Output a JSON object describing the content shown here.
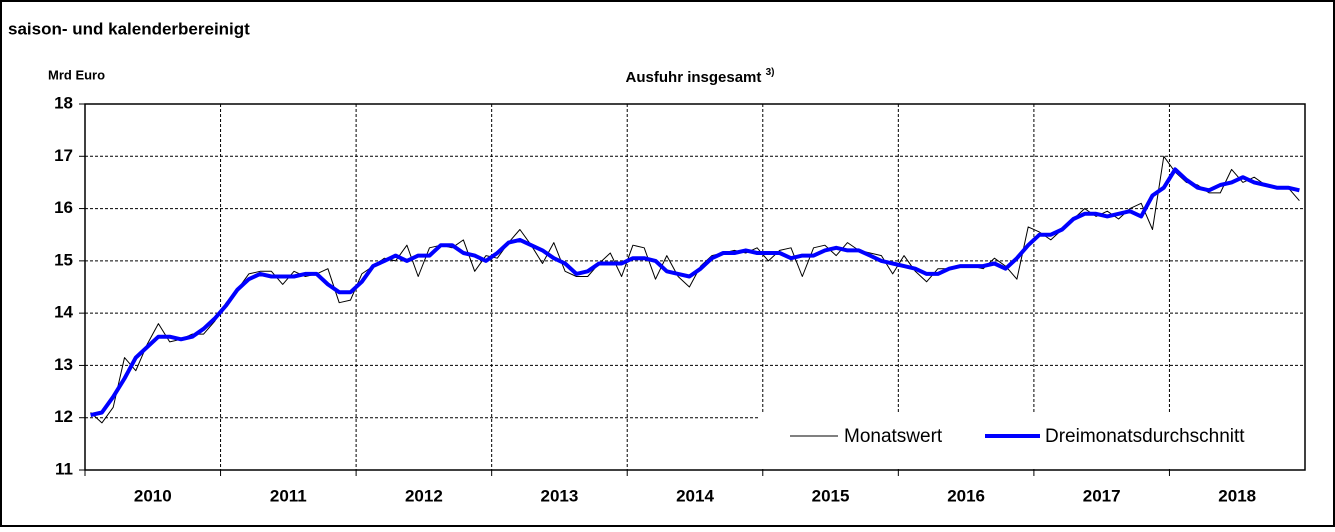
{
  "chart_data": {
    "type": "line",
    "subtitle": "saison- und kalenderbereinigt",
    "y_label": "Mrd Euro",
    "title": "Ausfuhr insgesamt",
    "title_note": "3)",
    "years": [
      "2010",
      "2011",
      "2012",
      "2013",
      "2014",
      "2015",
      "2016",
      "2017",
      "2018"
    ],
    "ylim": [
      11,
      18
    ],
    "yticks": [
      11,
      12,
      13,
      14,
      15,
      16,
      17,
      18
    ],
    "grid": true,
    "legend": "lower right",
    "series": [
      {
        "name": "Monatswert",
        "color": "#000000",
        "width": 1,
        "values": [
          12.1,
          11.9,
          12.2,
          13.15,
          12.9,
          13.4,
          13.8,
          13.45,
          13.5,
          13.6,
          13.6,
          13.85,
          14.2,
          14.45,
          14.75,
          14.8,
          14.8,
          14.55,
          14.8,
          14.7,
          14.75,
          14.85,
          14.2,
          14.25,
          14.75,
          14.9,
          15.05,
          15.0,
          15.3,
          14.7,
          15.25,
          15.3,
          15.25,
          15.4,
          14.8,
          15.1,
          15.05,
          15.35,
          15.6,
          15.3,
          14.95,
          15.35,
          14.8,
          14.7,
          14.7,
          14.95,
          15.15,
          14.7,
          15.3,
          15.25,
          14.65,
          15.1,
          14.7,
          14.5,
          14.9,
          15.1,
          15.15,
          15.2,
          15.15,
          15.25,
          15.0,
          15.2,
          15.25,
          14.7,
          15.25,
          15.3,
          15.1,
          15.35,
          15.2,
          15.15,
          15.1,
          14.75,
          15.1,
          14.8,
          14.6,
          14.85,
          14.85,
          14.9,
          14.9,
          14.85,
          15.05,
          14.9,
          14.65,
          15.65,
          15.55,
          15.4,
          15.6,
          15.8,
          16.0,
          15.85,
          15.95,
          15.8,
          16.0,
          16.1,
          15.6,
          17.0,
          16.7,
          16.5,
          16.45,
          16.3,
          16.3,
          16.75,
          16.5,
          16.6,
          16.45,
          16.4,
          16.4,
          16.15
        ]
      },
      {
        "name": "Dreimonatsdurchschnitt",
        "color": "#0000ff",
        "width": 4,
        "values": [
          12.05,
          12.1,
          12.4,
          12.75,
          13.15,
          13.35,
          13.55,
          13.55,
          13.5,
          13.55,
          13.7,
          13.9,
          14.15,
          14.45,
          14.65,
          14.75,
          14.7,
          14.7,
          14.7,
          14.75,
          14.75,
          14.55,
          14.4,
          14.4,
          14.6,
          14.9,
          15.0,
          15.1,
          15.0,
          15.1,
          15.1,
          15.3,
          15.3,
          15.15,
          15.1,
          15.0,
          15.15,
          15.35,
          15.4,
          15.3,
          15.2,
          15.05,
          14.95,
          14.75,
          14.8,
          14.95,
          14.95,
          14.95,
          15.05,
          15.05,
          15.0,
          14.8,
          14.75,
          14.7,
          14.85,
          15.05,
          15.15,
          15.15,
          15.2,
          15.15,
          15.15,
          15.15,
          15.05,
          15.1,
          15.1,
          15.2,
          15.25,
          15.2,
          15.2,
          15.1,
          15.0,
          14.95,
          14.9,
          14.85,
          14.75,
          14.75,
          14.85,
          14.9,
          14.9,
          14.9,
          14.95,
          14.85,
          15.05,
          15.3,
          15.5,
          15.5,
          15.6,
          15.8,
          15.9,
          15.9,
          15.85,
          15.9,
          15.95,
          15.85,
          16.25,
          16.4,
          16.75,
          16.55,
          16.4,
          16.35,
          16.45,
          16.5,
          16.6,
          16.5,
          16.45,
          16.4,
          16.4,
          16.35
        ]
      }
    ]
  }
}
